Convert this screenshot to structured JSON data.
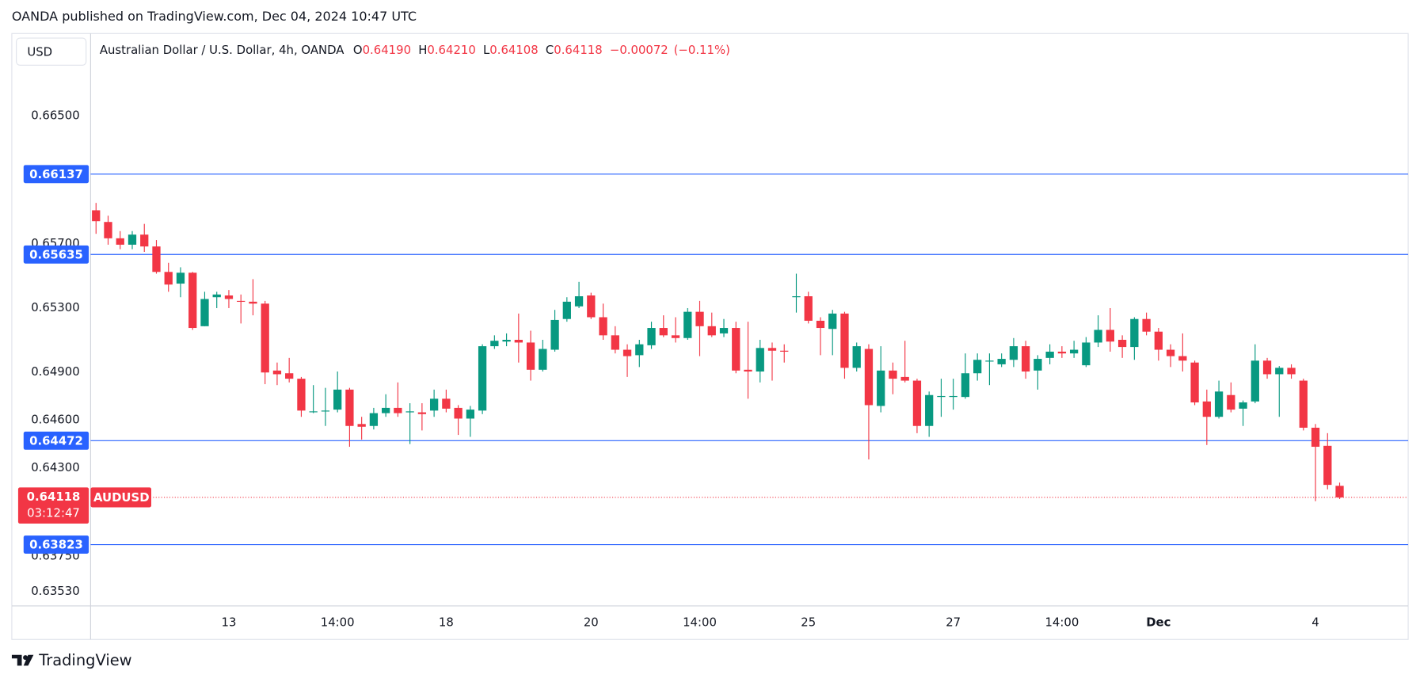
{
  "chart_data": {
    "type": "candlestick",
    "published": "OANDA published on TradingView.com, Dec 04, 2024 10:47 UTC",
    "currency": "USD",
    "title": "Australian Dollar / U.S. Dollar, 4h, OANDA",
    "legend": {
      "o": "O",
      "open": "0.64190",
      "h": "H",
      "high": "0.64210",
      "l": "L",
      "low": "0.64108",
      "c": "C",
      "close": "0.64118",
      "change": "−0.00072",
      "change_pct": "(−0.11%)"
    },
    "symbol": "AUDUSD",
    "countdown": "03:12:47",
    "brand": "TradingView",
    "up_color": "#089981",
    "down_color": "#f23645",
    "level_color": "#2962ff",
    "grid": false,
    "ylim": [
      0.6344,
      0.67015
    ],
    "yticks": [
      {
        "value": 0.665,
        "label": "0.66500"
      },
      {
        "value": 0.657,
        "label": "0.65700"
      },
      {
        "value": 0.653,
        "label": "0.65300"
      },
      {
        "value": 0.649,
        "label": "0.64900"
      },
      {
        "value": 0.646,
        "label": "0.64600"
      },
      {
        "value": 0.643,
        "label": "0.64300"
      },
      {
        "value": 0.6375,
        "label": "0.63750"
      },
      {
        "value": 0.6353,
        "label": "0.63530"
      }
    ],
    "levels": [
      0.66137,
      0.65635,
      0.64472,
      0.63823
    ],
    "categories": [
      null,
      null,
      null,
      null,
      null,
      null,
      null,
      null,
      null,
      null,
      null,
      "13",
      null,
      null,
      null,
      null,
      null,
      null,
      null,
      null,
      "14:00",
      null,
      null,
      null,
      null,
      null,
      null,
      null,
      null,
      "18",
      null,
      null,
      null,
      null,
      null,
      null,
      null,
      null,
      null,
      null,
      null,
      "20",
      null,
      null,
      null,
      null,
      null,
      null,
      null,
      null,
      "14:00",
      null,
      null,
      null,
      null,
      null,
      null,
      null,
      null,
      "25",
      null,
      null,
      null,
      null,
      null,
      null,
      null,
      null,
      null,
      null,
      null,
      "27",
      null,
      null,
      null,
      null,
      null,
      null,
      null,
      null,
      "14:00",
      null,
      null,
      null,
      null,
      null,
      null,
      null,
      "Dec",
      null,
      null,
      null,
      null,
      null,
      null,
      null,
      null,
      null,
      null,
      null,
      null,
      "4",
      null,
      null
    ],
    "open": [
      0.65911,
      0.65838,
      0.65736,
      0.65696,
      0.65759,
      0.65685,
      0.65526,
      0.65453,
      0.65521,
      0.65187,
      0.65368,
      0.65379,
      0.65345,
      0.6534,
      0.65328,
      0.6491,
      0.64893,
      0.64859,
      0.64655,
      0.64655,
      0.64666,
      0.64791,
      0.64576,
      0.64564,
      0.64644,
      0.64677,
      0.64649,
      0.64649,
      0.6466,
      0.64734,
      0.64677,
      0.6461,
      0.6466,
      0.65062,
      0.65091,
      0.65102,
      0.65085,
      0.64915,
      0.6504,
      0.65232,
      0.65311,
      0.65379,
      0.65243,
      0.6513,
      0.6504,
      0.65006,
      0.65068,
      0.65176,
      0.6513,
      0.65113,
      0.65277,
      0.65187,
      0.65142,
      0.65176,
      0.64915,
      0.64904,
      0.65051,
      0.65034,
      0.65368,
      0.65374,
      0.65221,
      0.6517,
      0.65266,
      0.64927,
      0.65045,
      0.64689,
      0.6491,
      0.6487,
      0.64847,
      0.64564,
      0.64745,
      0.64745,
      0.64745,
      0.64893,
      0.64966,
      0.64949,
      0.64977,
      0.65062,
      0.6491,
      0.64989,
      0.65028,
      0.65017,
      0.64943,
      0.65085,
      0.65164,
      0.65102,
      0.65057,
      0.65232,
      0.65153,
      0.6504,
      0.65,
      0.6496,
      0.64717,
      0.64621,
      0.64757,
      0.64672,
      0.64717,
      0.64972,
      0.64887,
      0.64927,
      0.64847,
      0.64553,
      0.6444,
      0.6419
    ],
    "high": [
      0.65957,
      0.65877,
      0.65781,
      0.65781,
      0.65826,
      0.65725,
      0.65583,
      0.65555,
      0.65526,
      0.65402,
      0.65402,
      0.65413,
      0.65385,
      0.65481,
      0.65345,
      0.6496,
      0.64989,
      0.6487,
      0.64819,
      0.64802,
      0.64904,
      0.64802,
      0.64621,
      0.64677,
      0.64762,
      0.64836,
      0.64706,
      0.64706,
      0.64791,
      0.64791,
      0.64694,
      0.64689,
      0.65074,
      0.6513,
      0.65142,
      0.65266,
      0.65159,
      0.65102,
      0.65289,
      0.65368,
      0.65464,
      0.65396,
      0.65328,
      0.65187,
      0.65074,
      0.65102,
      0.65215,
      0.65255,
      0.65243,
      0.653,
      0.65345,
      0.65272,
      0.65232,
      0.65215,
      0.65215,
      0.65102,
      0.65085,
      0.65074,
      0.65515,
      0.65402,
      0.65243,
      0.65289,
      0.65277,
      0.65085,
      0.65074,
      0.65062,
      0.6496,
      0.65096,
      0.64859,
      0.64779,
      0.64859,
      0.64859,
      0.65017,
      0.65017,
      0.65017,
      0.65017,
      0.65113,
      0.65096,
      0.65006,
      0.65074,
      0.65062,
      0.65096,
      0.65119,
      0.65255,
      0.653,
      0.6513,
      0.65243,
      0.65272,
      0.65176,
      0.65074,
      0.65142,
      0.64972,
      0.64791,
      0.64847,
      0.64836,
      0.64723,
      0.65074,
      0.64989,
      0.64938,
      0.64949,
      0.64859,
      0.64576,
      0.64519,
      0.6421
    ],
    "low": [
      0.65764,
      0.65696,
      0.65668,
      0.65668,
      0.65651,
      0.65515,
      0.65402,
      0.65368,
      0.65164,
      0.65187,
      0.653,
      0.653,
      0.65204,
      0.65255,
      0.64825,
      0.64819,
      0.64836,
      0.64621,
      0.64644,
      0.64564,
      0.64649,
      0.64434,
      0.64479,
      0.64542,
      0.64621,
      0.64621,
      0.64451,
      0.64536,
      0.64621,
      0.64649,
      0.64508,
      0.64496,
      0.64638,
      0.65045,
      0.65062,
      0.6496,
      0.64847,
      0.64904,
      0.65028,
      0.65215,
      0.653,
      0.65232,
      0.65102,
      0.65017,
      0.6487,
      0.64932,
      0.65045,
      0.65119,
      0.65085,
      0.65102,
      0.65,
      0.65119,
      0.65119,
      0.64893,
      0.64734,
      0.64836,
      0.64847,
      0.6496,
      0.65272,
      0.65204,
      0.65006,
      0.65006,
      0.64859,
      0.64904,
      0.64355,
      0.64649,
      0.64762,
      0.64836,
      0.64519,
      0.64496,
      0.64621,
      0.64666,
      0.64734,
      0.64847,
      0.64819,
      0.64932,
      0.64932,
      0.64859,
      0.64791,
      0.64949,
      0.64989,
      0.64989,
      0.64932,
      0.65057,
      0.65028,
      0.64989,
      0.64977,
      0.6513,
      0.64972,
      0.64932,
      0.64904,
      0.64694,
      0.64445,
      0.6461,
      0.64649,
      0.64564,
      0.64706,
      0.64859,
      0.64621,
      0.64859,
      0.64536,
      0.64094,
      0.64168,
      0.64108
    ],
    "close": [
      0.65843,
      0.65736,
      0.65696,
      0.65759,
      0.65685,
      0.65526,
      0.65447,
      0.65521,
      0.65176,
      0.65357,
      0.65385,
      0.65357,
      0.6534,
      0.65328,
      0.64898,
      0.64887,
      0.64859,
      0.6466,
      0.64655,
      0.6466,
      0.64791,
      0.64564,
      0.64559,
      0.64644,
      0.64677,
      0.64644,
      0.64655,
      0.64638,
      0.64734,
      0.64672,
      0.6461,
      0.64666,
      0.65062,
      0.65096,
      0.65102,
      0.65085,
      0.64915,
      0.65045,
      0.65226,
      0.6534,
      0.65374,
      0.65243,
      0.6513,
      0.6504,
      0.65,
      0.65074,
      0.65176,
      0.6513,
      0.65113,
      0.65277,
      0.65187,
      0.6513,
      0.65176,
      0.6491,
      0.64904,
      0.65051,
      0.65034,
      0.65028,
      0.65374,
      0.65221,
      0.65176,
      0.65266,
      0.64927,
      0.65062,
      0.64694,
      0.6491,
      0.64859,
      0.64847,
      0.64564,
      0.64757,
      0.64751,
      0.64751,
      0.64893,
      0.64977,
      0.64972,
      0.64983,
      0.65062,
      0.64904,
      0.64983,
      0.65028,
      0.65017,
      0.6504,
      0.65085,
      0.65164,
      0.65091,
      0.65057,
      0.65232,
      0.65153,
      0.6504,
      0.65,
      0.64972,
      0.64711,
      0.64621,
      0.64779,
      0.64666,
      0.64711,
      0.64972,
      0.64887,
      0.64927,
      0.64887,
      0.64553,
      0.64434,
      0.64196,
      0.64118
    ]
  }
}
